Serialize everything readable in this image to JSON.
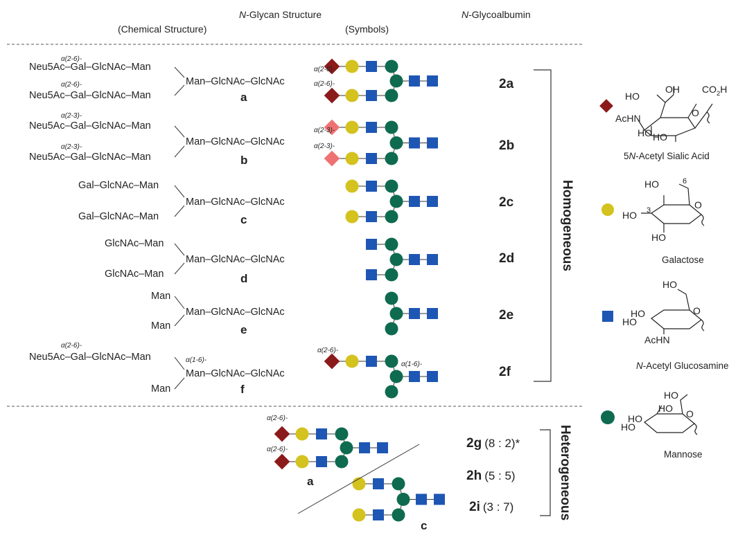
{
  "headers": {
    "nglycan_prefix": "N",
    "nglycan_rest": "-Glycan Structure",
    "chemical": "(Chemical Structure)",
    "symbols": "(Symbols)",
    "glycoalbumin_prefix": "N",
    "glycoalbumin_rest": "-Glycoalbumin"
  },
  "chemical_structures": [
    {
      "letter": "a",
      "top_arm": "Neu5Ac–Gal–GlcNAc–Man",
      "bottom_arm": "Neu5Ac–Gal–GlcNAc–Man",
      "core": "Man–GlcNAc–GlcNAc",
      "top_link": "α(2-6)-",
      "bottom_link": "α(2-6)-",
      "core_link": ""
    },
    {
      "letter": "b",
      "top_arm": "Neu5Ac–Gal–GlcNAc–Man",
      "bottom_arm": "Neu5Ac–Gal–GlcNAc–Man",
      "core": "Man–GlcNAc–GlcNAc",
      "top_link": "α(2-3)-",
      "bottom_link": "α(2-3)-",
      "core_link": ""
    },
    {
      "letter": "c",
      "top_arm": "Gal–GlcNAc–Man",
      "bottom_arm": "Gal–GlcNAc–Man",
      "core": "Man–GlcNAc–GlcNAc",
      "top_link": "",
      "bottom_link": "",
      "core_link": ""
    },
    {
      "letter": "d",
      "top_arm": "GlcNAc–Man",
      "bottom_arm": "GlcNAc–Man",
      "core": "Man–GlcNAc–GlcNAc",
      "top_link": "",
      "bottom_link": "",
      "core_link": ""
    },
    {
      "letter": "e",
      "top_arm": "Man",
      "bottom_arm": "Man",
      "core": "Man–GlcNAc–GlcNAc",
      "top_link": "",
      "bottom_link": "",
      "core_link": ""
    },
    {
      "letter": "f",
      "top_arm": "Neu5Ac–Gal–GlcNAc–Man",
      "bottom_arm": "Man",
      "core": "Man–GlcNAc–GlcNAc",
      "top_link": "α(2-6)-",
      "bottom_link": "",
      "core_link": "α(1-6)-"
    }
  ],
  "symbol_links": {
    "a_top": "α(2-6)-",
    "a_bottom": "α(2-6)-",
    "b_top": "α(2-3)-",
    "b_bottom": "α(2-3)-",
    "f_top": "α(2-6)-",
    "f_core": "α(1-6)-",
    "het_top": "α(2-6)-",
    "het_bottom": "α(2-6)-"
  },
  "homogeneous": {
    "label": "Homogeneous",
    "compounds": [
      "2a",
      "2b",
      "2c",
      "2d",
      "2e",
      "2f"
    ]
  },
  "heterogeneous": {
    "label": "Heterogeneous",
    "left_letter": "a",
    "right_letter": "c",
    "compounds": [
      {
        "id": "2g",
        "ratio": "(8 : 2)*"
      },
      {
        "id": "2h",
        "ratio": "(5 : 5)"
      },
      {
        "id": "2i",
        "ratio": "(3 : 7)"
      }
    ]
  },
  "legend": [
    {
      "symbol": "diamond",
      "color": "#8b1a1a",
      "name_prefix": "5",
      "name_italic": "N",
      "name_rest": "-Acetyl Sialic Acid"
    },
    {
      "symbol": "circle",
      "color": "#d4c21e",
      "name_prefix": "",
      "name_italic": "",
      "name_rest": "Galactose"
    },
    {
      "symbol": "square",
      "color": "#1e56b4",
      "name_prefix": "",
      "name_italic": "N",
      "name_rest": "-Acetyl Glucosamine"
    },
    {
      "symbol": "circle",
      "color": "#0f6b4f",
      "name_prefix": "",
      "name_italic": "",
      "name_rest": "Mannose"
    }
  ],
  "sugar_atoms": {
    "sialic": {
      "ho1": "HO",
      "oh": "OH",
      "co2h": "CO",
      "co2h_sub": "2",
      "co2h_end": "H",
      "achn": "AcHN",
      "ring_o": "O",
      "ho2": "HO",
      "ho3": "HO"
    },
    "gal": {
      "ho_top": "HO",
      "six": "6",
      "three": "3",
      "ho_left": "HO",
      "ring_o": "O",
      "ho_bottom": "HO"
    },
    "glcnac": {
      "ho_top": "HO",
      "ho1": "HO",
      "ho2": "HO",
      "ring_o": "O",
      "achn": "AcHN"
    },
    "man": {
      "ho_top": "HO",
      "ho1": "HO",
      "ho2": "HO",
      "ho3": "HO",
      "ring_o": "O"
    }
  },
  "colors": {
    "neu5ac_26": "#8b1a1a",
    "neu5ac_23": "#ef7272",
    "gal": "#d4c21e",
    "glcnac": "#1e56b4",
    "man": "#0f6b4f"
  }
}
